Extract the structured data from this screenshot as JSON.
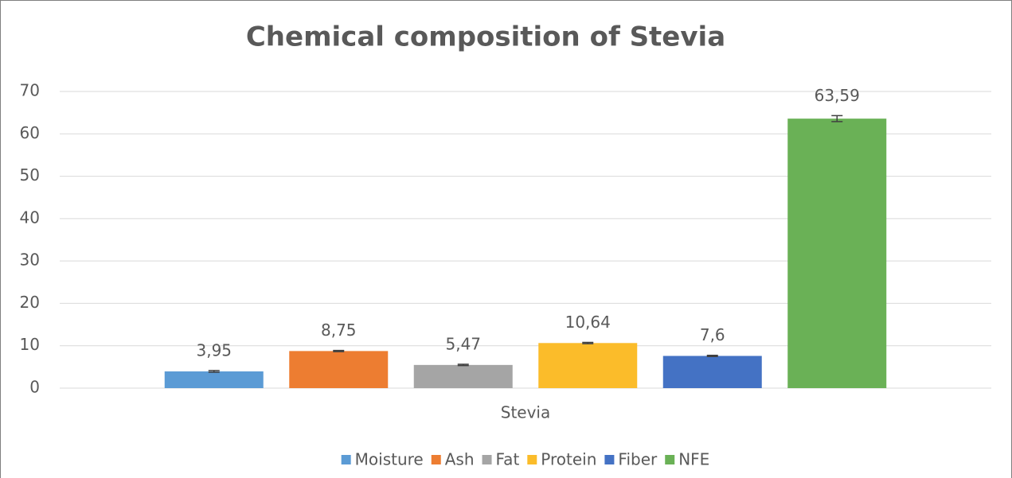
{
  "chart_data": {
    "type": "bar",
    "title": "Chemical composition of Stevia",
    "categories": [
      "Stevia"
    ],
    "series": [
      {
        "name": "Moisture",
        "color": "#5b9bd5",
        "values": [
          3.95
        ],
        "value_labels": [
          "3,95"
        ],
        "errors": [
          0.2
        ]
      },
      {
        "name": "Ash",
        "color": "#ed7d31",
        "values": [
          8.75
        ],
        "value_labels": [
          "8,75"
        ],
        "errors": [
          0.15
        ]
      },
      {
        "name": "Fat",
        "color": "#a5a5a5",
        "values": [
          5.47
        ],
        "value_labels": [
          "5,47"
        ],
        "errors": [
          0.15
        ]
      },
      {
        "name": "Protein",
        "color": "#fbbc2a",
        "values": [
          10.64
        ],
        "value_labels": [
          "10,64"
        ],
        "errors": [
          0.15
        ]
      },
      {
        "name": "Fiber",
        "color": "#4472c4",
        "values": [
          7.6
        ],
        "value_labels": [
          "7,6"
        ],
        "errors": [
          0.15
        ]
      },
      {
        "name": "NFE",
        "color": "#6ab156",
        "values": [
          63.59
        ],
        "value_labels": [
          "63,59"
        ],
        "errors": [
          0.7
        ]
      }
    ],
    "ylim": [
      0,
      70
    ],
    "yticks": [
      0,
      10,
      20,
      30,
      40,
      50,
      60,
      70
    ],
    "grid": true,
    "legend": "bottom"
  }
}
